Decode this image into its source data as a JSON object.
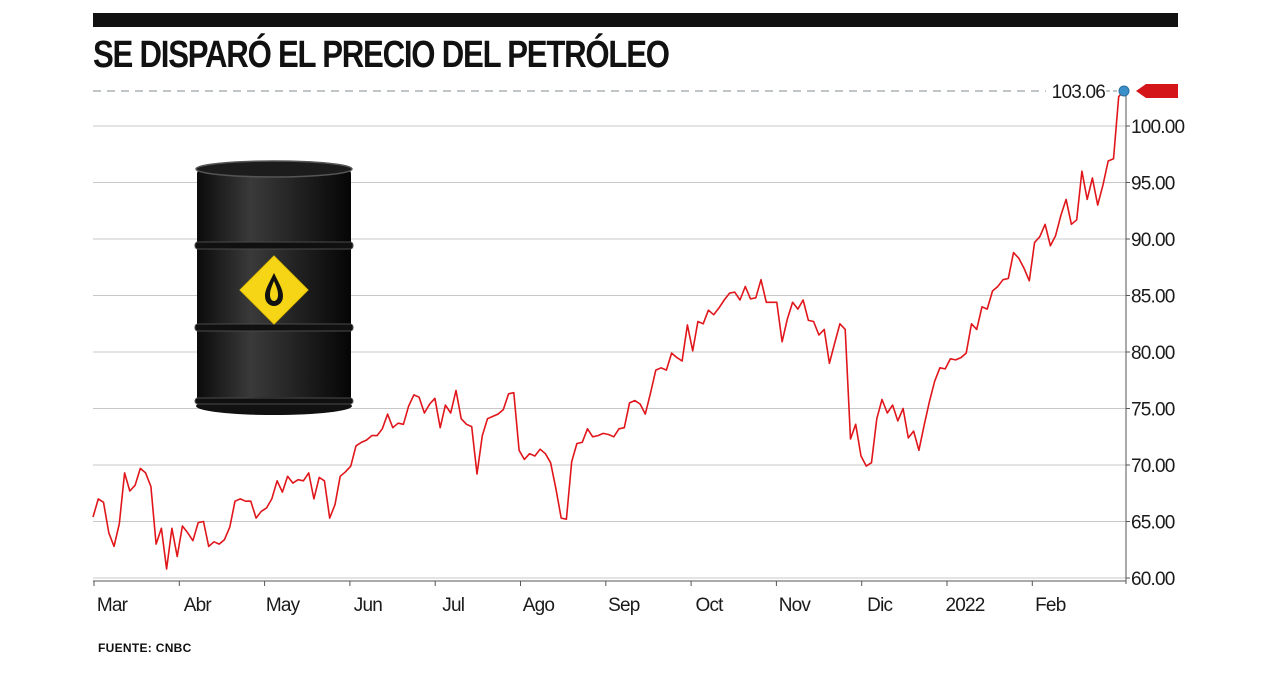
{
  "title": "SE DISPARÓ EL PRECIO DEL PETRÓLEO",
  "source": "FUENTE: CNBC",
  "colors": {
    "line": "#e0161b",
    "grid": "#c8c8c8",
    "marker": "#3b8fc9",
    "arrow": "#d4151a",
    "rule": "#111111"
  },
  "illustration": "oil-barrel-icon",
  "chart_data": {
    "type": "line",
    "title": "SE DISPARÓ EL PRECIO DEL PETRÓLEO",
    "xlabel": "",
    "ylabel": "",
    "ylim": [
      60,
      104
    ],
    "x_tick_labels": [
      "Mar",
      "Abr",
      "May",
      "Jun",
      "Jul",
      "Ago",
      "Sep",
      "Oct",
      "Nov",
      "Dic",
      "2022",
      "Feb"
    ],
    "y_tick_labels": [
      "60.00",
      "65.00",
      "70.00",
      "75.00",
      "80.00",
      "85.00",
      "90.00",
      "95.00",
      "100.00"
    ],
    "y_ticks": [
      60,
      65,
      70,
      75,
      80,
      85,
      90,
      95,
      100
    ],
    "grid": true,
    "last_value_label": "103.06",
    "series": [
      {
        "values": [
          65.4,
          67.0,
          66.7,
          64.0,
          62.8,
          64.8,
          69.3,
          67.7,
          68.2,
          69.7,
          69.3,
          68.1,
          63.0,
          64.4,
          60.8,
          64.4,
          61.9,
          64.6,
          64.0,
          63.3,
          64.9,
          65.0,
          62.8,
          63.2,
          63.0,
          63.4,
          64.5,
          66.8,
          67.0,
          66.8,
          66.8,
          65.3,
          65.9,
          66.2,
          67.0,
          68.6,
          67.6,
          69.0,
          68.4,
          68.7,
          68.6,
          69.3,
          67.0,
          68.9,
          68.6,
          65.3,
          66.5,
          69.0,
          69.4,
          69.9,
          71.7,
          72.0,
          72.2,
          72.6,
          72.6,
          73.2,
          74.5,
          73.3,
          73.7,
          73.6,
          75.2,
          76.2,
          76.0,
          74.6,
          75.4,
          75.9,
          73.3,
          75.3,
          74.6,
          76.6,
          74.1,
          73.6,
          73.4,
          69.2,
          72.6,
          74.1,
          74.3,
          74.5,
          74.9,
          76.3,
          76.4,
          71.3,
          70.5,
          71.0,
          70.8,
          71.4,
          71.0,
          70.2,
          67.9,
          65.3,
          65.2,
          70.3,
          71.9,
          72.0,
          73.2,
          72.5,
          72.6,
          72.8,
          72.7,
          72.5,
          73.2,
          73.3,
          75.5,
          75.7,
          75.4,
          74.5,
          76.4,
          78.4,
          78.6,
          78.4,
          79.9,
          79.5,
          79.2,
          82.4,
          80.1,
          82.7,
          82.5,
          83.7,
          83.3,
          83.9,
          84.6,
          85.2,
          85.3,
          84.6,
          85.8,
          84.7,
          84.8,
          86.4,
          84.4,
          84.4,
          84.4,
          80.9,
          82.9,
          84.4,
          83.8,
          84.6,
          82.8,
          82.7,
          81.5,
          82.0,
          79.0,
          80.8,
          82.5,
          82.0,
          72.3,
          73.6,
          70.8,
          69.9,
          70.2,
          74.1,
          75.8,
          74.6,
          75.3,
          73.9,
          75.0,
          72.4,
          73.0,
          71.3,
          73.5,
          75.6,
          77.4,
          78.6,
          78.5,
          79.4,
          79.3,
          79.5,
          79.9,
          82.5,
          82.0,
          84.0,
          83.8,
          85.4,
          85.8,
          86.4,
          86.5,
          88.8,
          88.3,
          87.4,
          86.3,
          89.7,
          90.2,
          91.3,
          89.4,
          90.3,
          92.1,
          93.5,
          91.3,
          91.7,
          96.0,
          93.5,
          95.4,
          93.0,
          94.8,
          96.9,
          97.1,
          102.6,
          103.1
        ]
      }
    ]
  }
}
